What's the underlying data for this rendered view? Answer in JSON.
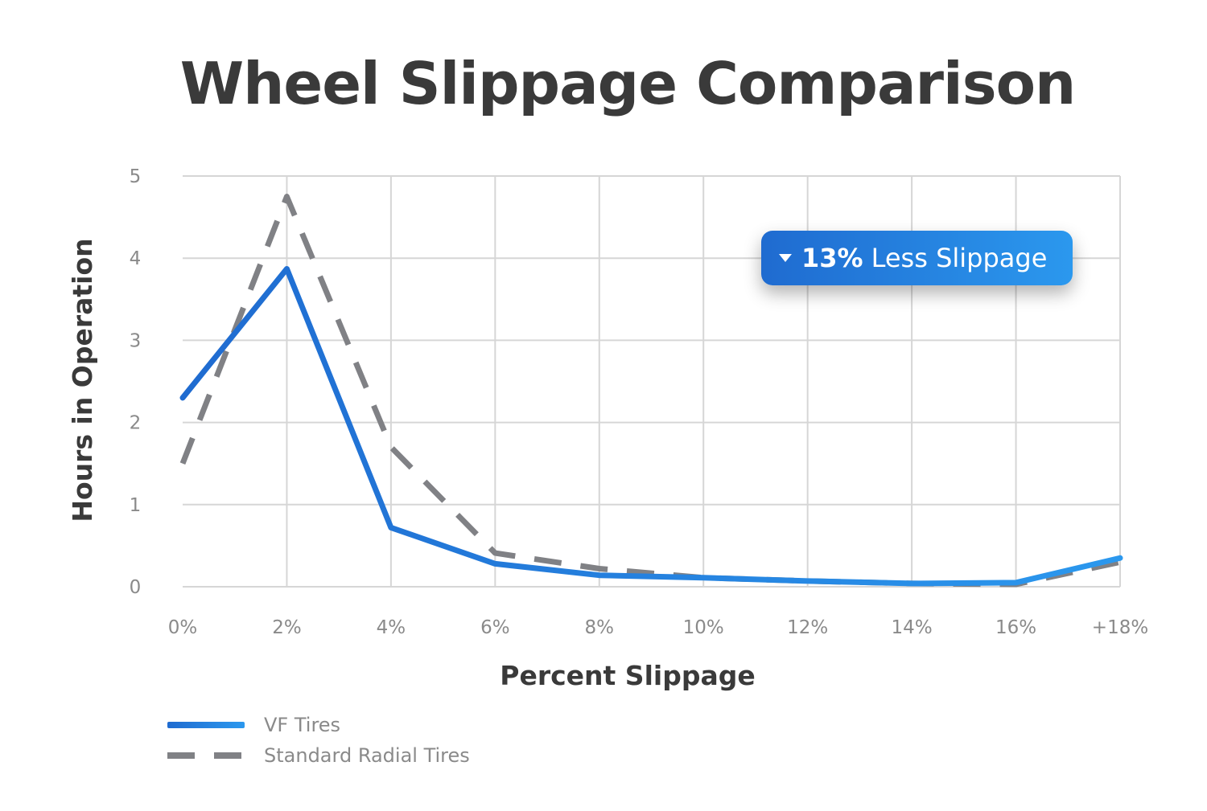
{
  "chart_data": {
    "type": "line",
    "title": "Wheel Slippage Comparison",
    "xlabel": "Percent Slippage",
    "ylabel": "Hours in Operation",
    "categories": [
      "0%",
      "2%",
      "4%",
      "6%",
      "8%",
      "10%",
      "12%",
      "14%",
      "16%",
      "+18%"
    ],
    "yticks": [
      "0",
      "1",
      "2",
      "3",
      "4",
      "5"
    ],
    "ylim": [
      0,
      5
    ],
    "grid": true,
    "series": [
      {
        "name": "VF Tires",
        "style": "solid",
        "color": "#2176d9",
        "values": [
          2.3,
          3.87,
          0.72,
          0.28,
          0.14,
          0.11,
          0.07,
          0.04,
          0.05,
          0.35
        ]
      },
      {
        "name": "Standard Radial Tires",
        "style": "dashed",
        "color": "#808185",
        "values": [
          1.5,
          4.75,
          1.7,
          0.41,
          0.22,
          0.11,
          0.07,
          0.04,
          0.03,
          0.3
        ]
      }
    ],
    "annotation": {
      "value": "13%",
      "text": "Less Slippage"
    }
  },
  "colors": {
    "title": "#3a3a3a",
    "grid": "#d6d6d6",
    "accent_start": "#1f6bd0",
    "accent_end": "#2b98ee"
  }
}
